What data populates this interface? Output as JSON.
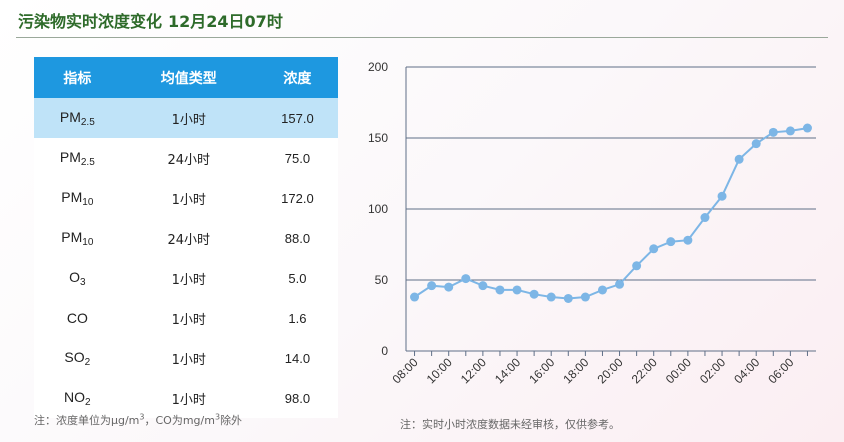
{
  "header": {
    "title": "污染物实时浓度变化",
    "time": "12月24日07时"
  },
  "table": {
    "columns": [
      "指标",
      "均值类型",
      "浓度"
    ],
    "rows": [
      {
        "name": "PM",
        "sub": "2.5",
        "avg": "1小时",
        "value": "157.0",
        "selected": true
      },
      {
        "name": "PM",
        "sub": "2.5",
        "avg": "24小时",
        "value": "75.0",
        "selected": false
      },
      {
        "name": "PM",
        "sub": "10",
        "avg": "1小时",
        "value": "172.0",
        "selected": false
      },
      {
        "name": "PM",
        "sub": "10",
        "avg": "24小时",
        "value": "88.0",
        "selected": false
      },
      {
        "name": "O",
        "sub": "3",
        "avg": "1小时",
        "value": "5.0",
        "selected": false
      },
      {
        "name": "CO",
        "sub": "",
        "avg": "1小时",
        "value": "1.6",
        "selected": false
      },
      {
        "name": "SO",
        "sub": "2",
        "avg": "1小时",
        "value": "14.0",
        "selected": false
      },
      {
        "name": "NO",
        "sub": "2",
        "avg": "1小时",
        "value": "98.0",
        "selected": false
      }
    ]
  },
  "notes": {
    "left_a": "注：浓度单位为μg/m",
    "left_sup1": "3",
    "left_b": "，CO为mg/m",
    "left_sup2": "3",
    "left_c": "除外",
    "right": "注：实时小时浓度数据未经审核，仅供参考。"
  },
  "colors": {
    "line": "#7db6e6",
    "header_bg": "#1e98e0",
    "selected_row": "#bfe3f8",
    "title": "#2e6b2a"
  },
  "chart_data": {
    "type": "line",
    "x": [
      "08:00",
      "09:00",
      "10:00",
      "11:00",
      "12:00",
      "13:00",
      "14:00",
      "15:00",
      "16:00",
      "17:00",
      "18:00",
      "19:00",
      "20:00",
      "21:00",
      "22:00",
      "23:00",
      "00:00",
      "01:00",
      "02:00",
      "03:00",
      "04:00",
      "05:00",
      "06:00",
      "07:00"
    ],
    "x_tick_labels": [
      "08:00",
      "10:00",
      "12:00",
      "14:00",
      "16:00",
      "18:00",
      "20:00",
      "22:00",
      "00:00",
      "02:00",
      "04:00",
      "06:00"
    ],
    "series": [
      {
        "values": [
          38,
          46,
          45,
          51,
          46,
          43,
          43,
          40,
          38,
          37,
          38,
          43,
          47,
          60,
          72,
          77,
          78,
          94,
          109,
          135,
          146,
          154,
          155,
          157
        ]
      }
    ],
    "y_ticks": [
      0,
      50,
      100,
      150,
      200
    ],
    "ylim": [
      0,
      200
    ],
    "grid": true
  }
}
